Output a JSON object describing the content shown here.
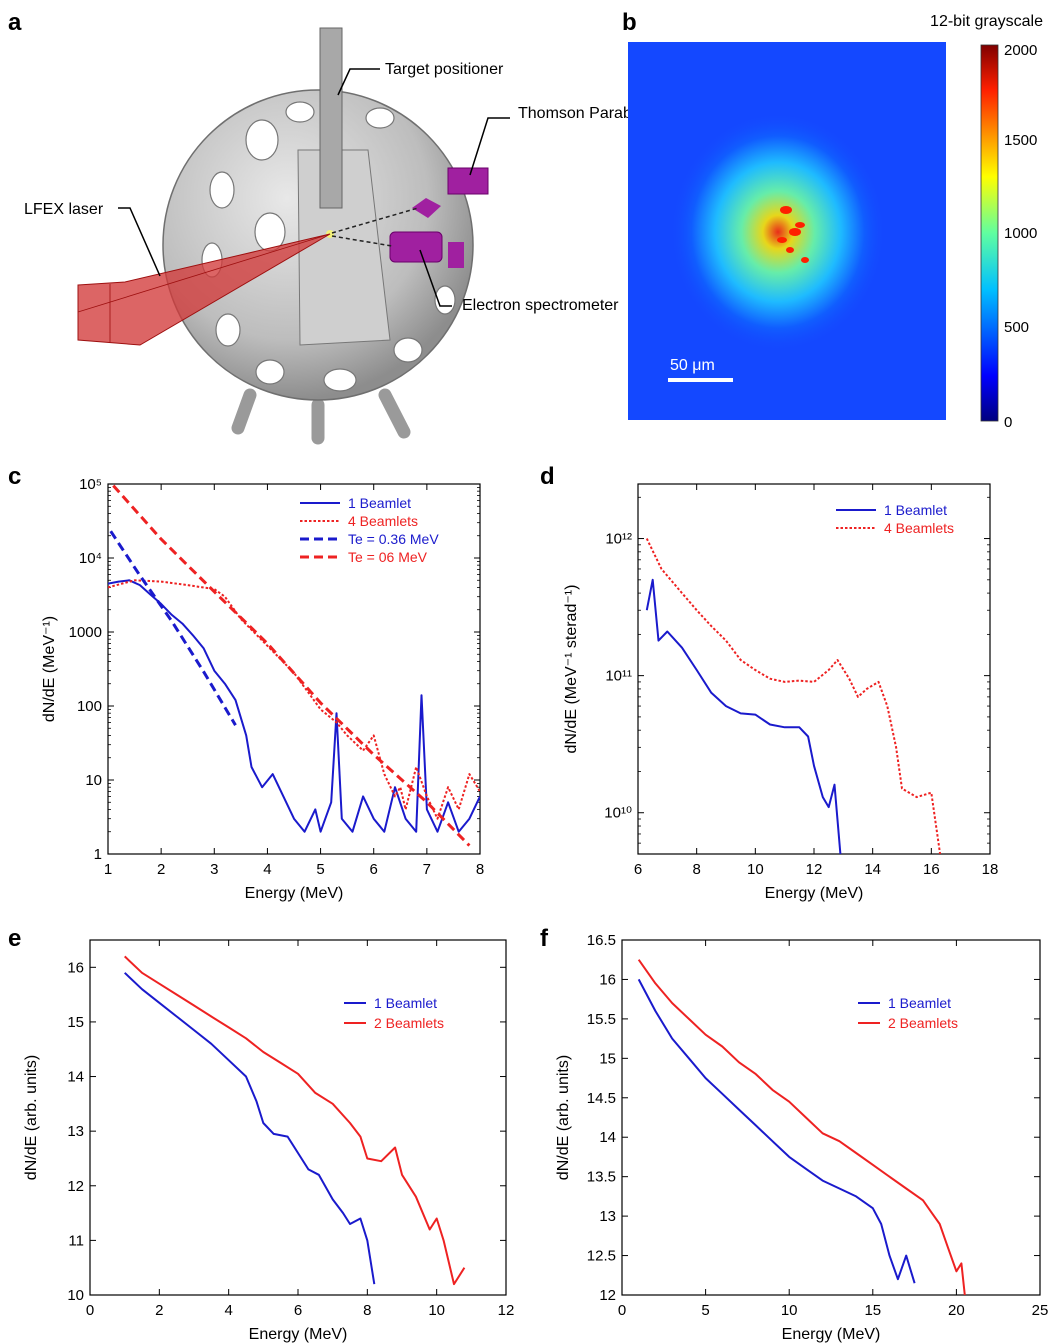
{
  "panels": {
    "a": {
      "label": "a",
      "annotations": [
        "Target positioner",
        "Thomson Parabola",
        "LFEX laser",
        "Electron spectrometer"
      ]
    },
    "b": {
      "label": "b",
      "colorbar_title": "12-bit grayscale",
      "colorbar_ticks": [
        "2000",
        "1500",
        "1000",
        "500",
        "0"
      ],
      "scale_bar": "50 μm"
    }
  },
  "colors": {
    "blue": "#1a1acc",
    "red": "#ee2222",
    "axis": "#000000"
  },
  "chart_data": [
    {
      "id": "c",
      "label": "c",
      "type": "line",
      "xlabel": "Energy (MeV)",
      "ylabel": "dN/dE (MeV⁻¹)",
      "ylog": true,
      "xlim": [
        1,
        8
      ],
      "ylim": [
        1,
        100000
      ],
      "xticks": [
        "1",
        "2",
        "3",
        "4",
        "5",
        "6",
        "7",
        "8"
      ],
      "yticks": [
        {
          "v": 1,
          "t": "1"
        },
        {
          "v": 10,
          "t": "10"
        },
        {
          "v": 100,
          "t": "100"
        },
        {
          "v": 1000,
          "t": "1000"
        },
        {
          "v": 10000,
          "t": "10⁴"
        },
        {
          "v": 100000,
          "t": "10⁵"
        }
      ],
      "legend_position": "top-right",
      "series": [
        {
          "name": "1 Beamlet",
          "color": "#1a1acc",
          "dash": "solid",
          "x": [
            1.0,
            1.2,
            1.4,
            1.6,
            1.8,
            2.0,
            2.2,
            2.4,
            2.6,
            2.8,
            3.0,
            3.2,
            3.4,
            3.6,
            3.7,
            3.9,
            4.1,
            4.3,
            4.5,
            4.7,
            4.9,
            5.0,
            5.2,
            5.3,
            5.4,
            5.6,
            5.8,
            6.0,
            6.2,
            6.4,
            6.6,
            6.8,
            6.9,
            7.0,
            7.2,
            7.4,
            7.6,
            7.8,
            8.0
          ],
          "y": [
            4500,
            4800,
            5000,
            4300,
            3200,
            2400,
            1700,
            1300,
            900,
            600,
            300,
            200,
            120,
            40,
            15,
            8,
            12,
            6,
            3,
            2,
            4,
            2,
            5,
            80,
            3,
            2,
            6,
            3,
            2,
            8,
            3,
            2,
            140,
            4,
            2,
            5,
            2,
            3,
            6
          ]
        },
        {
          "name": "4 Beamlets",
          "color": "#ee2222",
          "dash": "dotted",
          "x": [
            1.0,
            1.5,
            2.0,
            2.5,
            3.0,
            3.2,
            3.5,
            4.0,
            4.5,
            5.0,
            5.3,
            5.5,
            5.8,
            6.0,
            6.2,
            6.4,
            6.5,
            6.6,
            6.8,
            7.0,
            7.2,
            7.4,
            7.6,
            7.8,
            8.0
          ],
          "y": [
            4000,
            5000,
            4800,
            4300,
            3800,
            3000,
            1500,
            650,
            280,
            90,
            60,
            40,
            25,
            40,
            12,
            6,
            8,
            4,
            15,
            6,
            3,
            8,
            4,
            12,
            7
          ]
        },
        {
          "name": "Te = 0.36 MeV",
          "color": "#1a1acc",
          "dash": "dashed",
          "x": [
            1.05,
            1.6,
            2.2,
            2.8,
            3.4
          ],
          "y": [
            23000,
            5800,
            1400,
            290,
            55
          ]
        },
        {
          "name": "Te = 06 MeV",
          "color": "#ee2222",
          "dash": "dashed",
          "x": [
            1.1,
            2.0,
            3.0,
            4.0,
            5.0,
            6.0,
            7.0,
            7.8
          ],
          "y": [
            95000,
            18000,
            3500,
            700,
            110,
            22,
            5,
            1.3
          ]
        }
      ]
    },
    {
      "id": "d",
      "label": "d",
      "type": "line",
      "xlabel": "Energy (MeV)",
      "ylabel": "dN/dE (MeV⁻¹ sterad⁻¹)",
      "ylog": true,
      "xlim": [
        6,
        18
      ],
      "ylim": [
        5000000000,
        2500000000000
      ],
      "xticks": [
        "6",
        "8",
        "10",
        "12",
        "14",
        "16",
        "18"
      ],
      "yticks": [
        {
          "v": 10000000000,
          "t": "10¹⁰"
        },
        {
          "v": 100000000000,
          "t": "10¹¹"
        },
        {
          "v": 1000000000000,
          "t": "10¹²"
        }
      ],
      "legend_position": "top-right",
      "series": [
        {
          "name": "1 Beamlet",
          "color": "#1a1acc",
          "dash": "solid",
          "x": [
            6.3,
            6.5,
            6.7,
            7.0,
            7.5,
            8.0,
            8.5,
            9.0,
            9.5,
            10.0,
            10.5,
            11.0,
            11.5,
            11.8,
            12.0,
            12.3,
            12.5,
            12.7,
            12.9
          ],
          "y": [
            300000000000.0,
            500000000000.0,
            180000000000.0,
            210000000000.0,
            160000000000.0,
            110000000000.0,
            75000000000.0,
            60000000000.0,
            53000000000.0,
            52000000000.0,
            44000000000.0,
            42000000000.0,
            42000000000.0,
            36000000000.0,
            22000000000.0,
            13000000000.0,
            11000000000.0,
            16000000000.0,
            5000000000.0
          ]
        },
        {
          "name": "4 Beamlets",
          "color": "#ee2222",
          "dash": "dotted",
          "x": [
            6.3,
            6.8,
            7.5,
            8.0,
            8.5,
            9.0,
            9.5,
            10.0,
            10.5,
            11.0,
            11.5,
            12.0,
            12.5,
            12.8,
            13.2,
            13.5,
            13.8,
            14.2,
            14.5,
            14.8,
            15.0,
            15.5,
            16.0,
            16.3
          ],
          "y": [
            1000000000000.0,
            600000000000.0,
            400000000000.0,
            300000000000.0,
            230000000000.0,
            180000000000.0,
            130000000000.0,
            110000000000.0,
            95000000000.0,
            90000000000.0,
            92000000000.0,
            90000000000.0,
            110000000000.0,
            130000000000.0,
            95000000000.0,
            70000000000.0,
            80000000000.0,
            90000000000.0,
            60000000000.0,
            30000000000.0,
            15000000000.0,
            13000000000.0,
            14000000000.0,
            5000000000.0
          ]
        }
      ]
    },
    {
      "id": "e",
      "label": "e",
      "type": "line",
      "xlabel": "Energy (MeV)",
      "ylabel": "dN/dE (arb. units)",
      "ylog": false,
      "xlim": [
        0,
        12
      ],
      "ylim": [
        10,
        16.5
      ],
      "xticks": [
        "0",
        "2",
        "4",
        "6",
        "8",
        "10",
        "12"
      ],
      "yticks": [
        {
          "v": 10,
          "t": "10"
        },
        {
          "v": 11,
          "t": "11"
        },
        {
          "v": 12,
          "t": "12"
        },
        {
          "v": 13,
          "t": "13"
        },
        {
          "v": 14,
          "t": "14"
        },
        {
          "v": 15,
          "t": "15"
        },
        {
          "v": 16,
          "t": "16"
        }
      ],
      "legend_position": "top-right",
      "series": [
        {
          "name": "1 Beamlet",
          "color": "#1a1acc",
          "dash": "solid",
          "x": [
            1.0,
            1.5,
            2.0,
            2.5,
            3.0,
            3.5,
            4.0,
            4.5,
            4.8,
            5.0,
            5.3,
            5.7,
            6.0,
            6.3,
            6.6,
            7.0,
            7.3,
            7.5,
            7.8,
            8.0,
            8.2
          ],
          "y": [
            15.9,
            15.6,
            15.35,
            15.1,
            14.85,
            14.6,
            14.3,
            14.0,
            13.55,
            13.15,
            12.95,
            12.9,
            12.6,
            12.3,
            12.2,
            11.75,
            11.5,
            11.3,
            11.4,
            11.0,
            10.2
          ]
        },
        {
          "name": "2 Beamlets",
          "color": "#ee2222",
          "dash": "solid",
          "x": [
            1.0,
            1.5,
            2.0,
            2.5,
            3.0,
            3.5,
            4.0,
            4.5,
            5.0,
            5.5,
            6.0,
            6.5,
            7.0,
            7.5,
            7.8,
            8.0,
            8.4,
            8.8,
            9.0,
            9.4,
            9.8,
            10.0,
            10.2,
            10.5,
            10.8
          ],
          "y": [
            16.2,
            15.9,
            15.7,
            15.5,
            15.3,
            15.1,
            14.9,
            14.7,
            14.45,
            14.25,
            14.05,
            13.7,
            13.5,
            13.15,
            12.9,
            12.5,
            12.45,
            12.7,
            12.2,
            11.8,
            11.2,
            11.4,
            11.0,
            10.2,
            10.5
          ]
        }
      ]
    },
    {
      "id": "f",
      "label": "f",
      "type": "line",
      "xlabel": "Energy (MeV)",
      "ylabel": "dN/dE (arb. units)",
      "ylog": false,
      "xlim": [
        0,
        25
      ],
      "ylim": [
        12,
        16.5
      ],
      "xticks": [
        "0",
        "5",
        "10",
        "15",
        "20",
        "25"
      ],
      "yticks": [
        {
          "v": 12,
          "t": "12"
        },
        {
          "v": 12.5,
          "t": "12.5"
        },
        {
          "v": 13,
          "t": "13"
        },
        {
          "v": 13.5,
          "t": "13.5"
        },
        {
          "v": 14,
          "t": "14"
        },
        {
          "v": 14.5,
          "t": "14.5"
        },
        {
          "v": 15,
          "t": "15"
        },
        {
          "v": 15.5,
          "t": "15.5"
        },
        {
          "v": 16,
          "t": "16"
        },
        {
          "v": 16.5,
          "t": "16.5"
        }
      ],
      "legend_position": "top-right",
      "series": [
        {
          "name": "1 Beamlet",
          "color": "#1a1acc",
          "dash": "solid",
          "x": [
            1.0,
            2.0,
            3.0,
            4.0,
            5.0,
            6.0,
            7.0,
            8.0,
            9.0,
            10.0,
            11.0,
            12.0,
            13.0,
            14.0,
            15.0,
            15.5,
            16.0,
            16.5,
            17.0,
            17.5
          ],
          "y": [
            16.0,
            15.6,
            15.25,
            15.0,
            14.75,
            14.55,
            14.35,
            14.15,
            13.95,
            13.75,
            13.6,
            13.45,
            13.35,
            13.25,
            13.1,
            12.9,
            12.5,
            12.2,
            12.5,
            12.15
          ]
        },
        {
          "name": "2 Beamlets",
          "color": "#ee2222",
          "dash": "solid",
          "x": [
            1.0,
            2.0,
            3.0,
            4.0,
            5.0,
            6.0,
            7.0,
            8.0,
            9.0,
            10.0,
            11.0,
            12.0,
            13.0,
            14.0,
            15.0,
            16.0,
            17.0,
            18.0,
            18.5,
            19.0,
            19.5,
            20.0,
            20.3,
            20.5
          ],
          "y": [
            16.25,
            15.95,
            15.7,
            15.5,
            15.3,
            15.15,
            14.95,
            14.8,
            14.6,
            14.45,
            14.25,
            14.05,
            13.95,
            13.8,
            13.65,
            13.5,
            13.35,
            13.2,
            13.05,
            12.9,
            12.6,
            12.3,
            12.4,
            12.0
          ]
        }
      ]
    }
  ]
}
